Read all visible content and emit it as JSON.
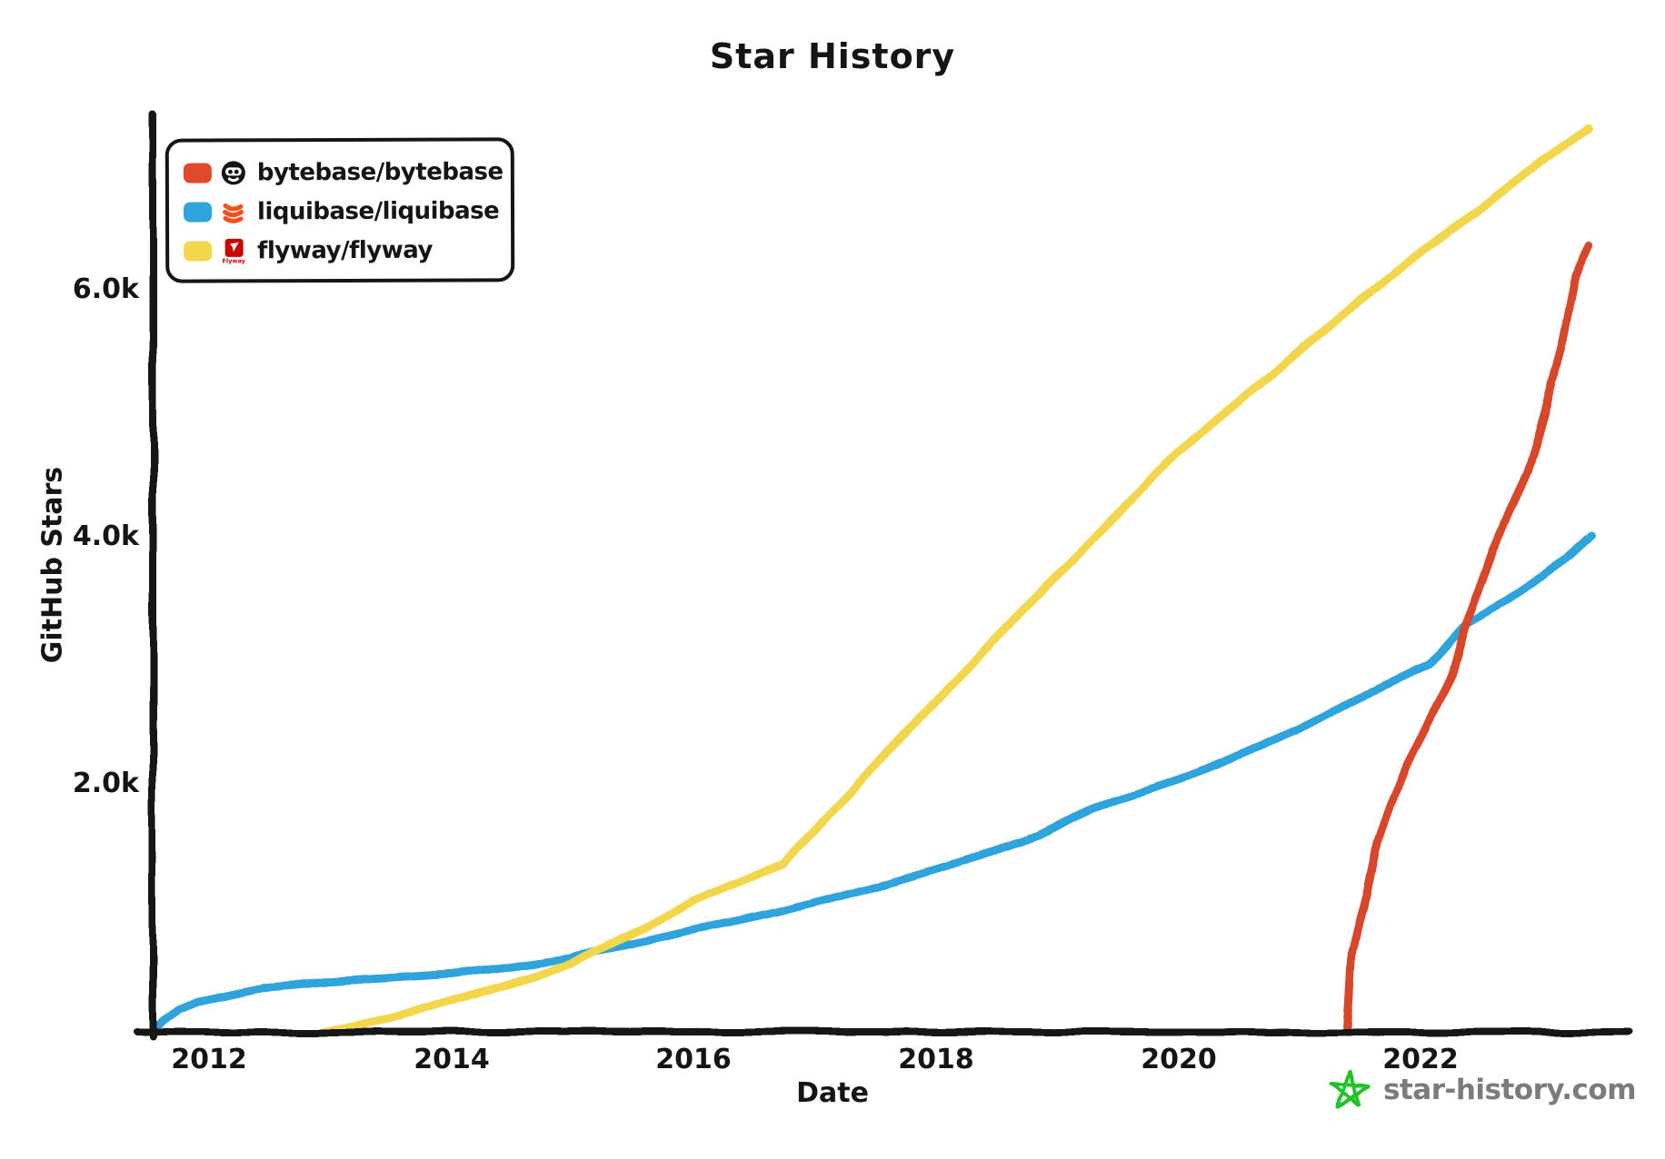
{
  "title": "Star History",
  "axes": {
    "x_label": "Date",
    "y_label": "GitHub Stars",
    "x_ticks": [
      "2012",
      "2014",
      "2016",
      "2018",
      "2020",
      "2022"
    ],
    "y_ticks": [
      "6.0k",
      "4.0k",
      "2.0k"
    ]
  },
  "legend": {
    "items": [
      {
        "label": "bytebase/bytebase",
        "color": "#dd4b2b",
        "icon": "bytebase-logo"
      },
      {
        "label": "liquibase/liquibase",
        "color": "#2fa3dc",
        "icon": "liquibase-logo"
      },
      {
        "label": "flyway/flyway",
        "color": "#f2d64b",
        "icon": "flyway-logo",
        "icon_caption": "Flyway"
      }
    ]
  },
  "watermark": {
    "text": "star-history.com",
    "star_color": "#22c32a",
    "text_color": "#7b7b7b"
  },
  "chart_data": {
    "type": "line",
    "title": "Star History",
    "xlabel": "Date",
    "ylabel": "GitHub Stars",
    "xlim": [
      2011.5,
      2023.8
    ],
    "ylim": [
      0,
      7550
    ],
    "x_tick_years": [
      2012,
      2014,
      2016,
      2018,
      2020,
      2022
    ],
    "y_tick_values": [
      6000,
      4000,
      2000
    ],
    "grid": false,
    "legend_position": "top-left",
    "series": [
      {
        "id": "liquibase",
        "name": "liquibase/liquibase",
        "color": "#2fa3dc",
        "points": [
          [
            2011.53,
            0
          ],
          [
            2011.62,
            90
          ],
          [
            2011.75,
            180
          ],
          [
            2011.9,
            240
          ],
          [
            2012.0,
            260
          ],
          [
            2012.2,
            300
          ],
          [
            2012.45,
            350
          ],
          [
            2012.7,
            370
          ],
          [
            2013.0,
            400
          ],
          [
            2013.5,
            430
          ],
          [
            2014.0,
            460
          ],
          [
            2014.5,
            520
          ],
          [
            2015.0,
            590
          ],
          [
            2015.2,
            650
          ],
          [
            2015.6,
            730
          ],
          [
            2016.0,
            820
          ],
          [
            2016.4,
            900
          ],
          [
            2016.73,
            970
          ],
          [
            2017.0,
            1040
          ],
          [
            2017.5,
            1170
          ],
          [
            2018.0,
            1310
          ],
          [
            2018.5,
            1460
          ],
          [
            2018.85,
            1580
          ],
          [
            2019.3,
            1810
          ],
          [
            2019.7,
            1930
          ],
          [
            2020.0,
            2030
          ],
          [
            2020.5,
            2230
          ],
          [
            2021.0,
            2440
          ],
          [
            2021.5,
            2700
          ],
          [
            2022.07,
            2960
          ],
          [
            2022.37,
            3290
          ],
          [
            2022.7,
            3480
          ],
          [
            2023.0,
            3680
          ],
          [
            2023.2,
            3820
          ],
          [
            2023.4,
            4000
          ]
        ]
      },
      {
        "id": "flyway",
        "name": "flyway/flyway",
        "color": "#f2d64b",
        "points": [
          [
            2012.95,
            0
          ],
          [
            2013.2,
            40
          ],
          [
            2013.5,
            100
          ],
          [
            2013.75,
            170
          ],
          [
            2014.0,
            245
          ],
          [
            2014.3,
            330
          ],
          [
            2014.6,
            420
          ],
          [
            2015.0,
            540
          ],
          [
            2015.2,
            650
          ],
          [
            2015.6,
            840
          ],
          [
            2016.0,
            1060
          ],
          [
            2016.4,
            1220
          ],
          [
            2016.73,
            1350
          ],
          [
            2017.3,
            1930
          ],
          [
            2017.78,
            2450
          ],
          [
            2018.2,
            2880
          ],
          [
            2018.6,
            3290
          ],
          [
            2019.0,
            3690
          ],
          [
            2019.5,
            4180
          ],
          [
            2019.97,
            4670
          ],
          [
            2020.5,
            5090
          ],
          [
            2021.0,
            5500
          ],
          [
            2021.5,
            5910
          ],
          [
            2022.0,
            6300
          ],
          [
            2022.5,
            6660
          ],
          [
            2023.0,
            7050
          ],
          [
            2023.4,
            7300
          ]
        ]
      },
      {
        "id": "bytebase",
        "name": "bytebase/bytebase",
        "color": "#d8462b",
        "points": [
          [
            2021.39,
            0
          ],
          [
            2021.41,
            300
          ],
          [
            2021.43,
            630
          ],
          [
            2021.49,
            880
          ],
          [
            2021.55,
            1090
          ],
          [
            2021.63,
            1490
          ],
          [
            2021.75,
            1820
          ],
          [
            2021.9,
            2170
          ],
          [
            2022.08,
            2520
          ],
          [
            2022.26,
            2890
          ],
          [
            2022.37,
            3280
          ],
          [
            2022.6,
            3900
          ],
          [
            2022.88,
            4520
          ],
          [
            2023.03,
            5020
          ],
          [
            2023.18,
            5600
          ],
          [
            2023.28,
            6090
          ],
          [
            2023.4,
            6350
          ]
        ]
      }
    ]
  }
}
